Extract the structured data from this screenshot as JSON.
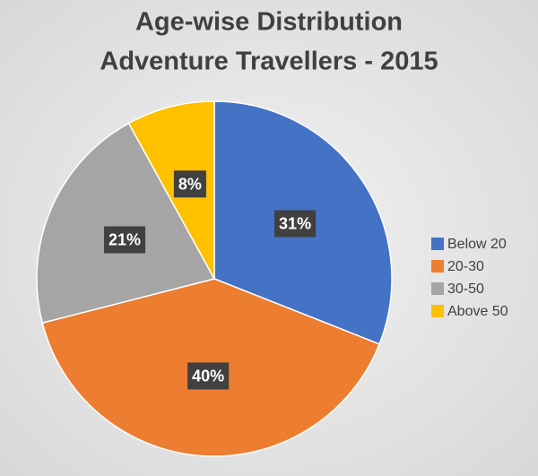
{
  "chart_data": {
    "type": "pie",
    "title": [
      "Age-wise Distribution",
      "Adventure Travellers - 2015"
    ],
    "categories": [
      "Below 20",
      "20-30",
      "30-50",
      "Above 50"
    ],
    "values": [
      31,
      40,
      21,
      8
    ],
    "value_labels": [
      "31%",
      "40%",
      "21%",
      "8%"
    ],
    "colors": [
      "#4472c4",
      "#ed7d31",
      "#a5a5a5",
      "#ffc000"
    ],
    "legend": "right"
  }
}
